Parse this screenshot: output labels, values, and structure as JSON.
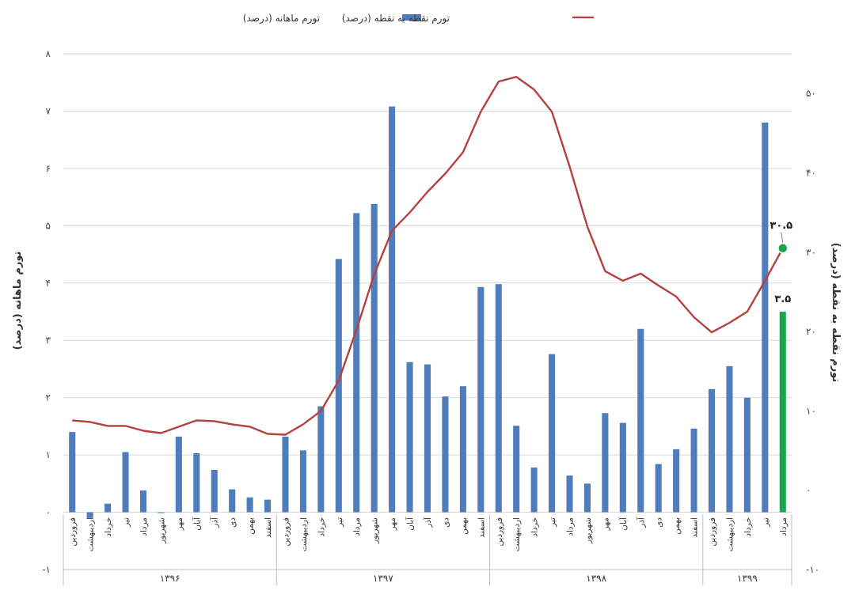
{
  "chart_data": {
    "type": "bar+line",
    "legend": {
      "position": "top",
      "bar_series_label": "تورم ماهانه (درصد)",
      "line_series_label": "تورم نقطه به نقطه (درصد)"
    },
    "y_left": {
      "label": "تورم ماهانه (درصد)",
      "ylim": [
        -1,
        8
      ],
      "ticks": [
        -1,
        0,
        1,
        2,
        3,
        4,
        5,
        6,
        7,
        8
      ],
      "tick_labels": [
        "-۱",
        "۰",
        "۱",
        "۲",
        "۳",
        "۴",
        "۵",
        "۶",
        "۷",
        "۸"
      ]
    },
    "y_right": {
      "label": "تورم نقطه به نقطه (درصد)",
      "ylim": [
        -10,
        55
      ],
      "ticks": [
        -10,
        0,
        10,
        20,
        30,
        40,
        50
      ],
      "tick_labels": [
        "-۱۰",
        "۰",
        "۱۰",
        "۲۰",
        "۳۰",
        "۴۰",
        "۵۰"
      ]
    },
    "grid": "horizontal",
    "categories": [
      "فروردین",
      "اردیبهشت",
      "خرداد",
      "تیر",
      "مرداد",
      "شهریور",
      "مهر",
      "آبان",
      "آذر",
      "دی",
      "بهمن",
      "اسفند",
      "فروردین",
      "اردیبهشت",
      "خرداد",
      "تیر",
      "مرداد",
      "شهریور",
      "مهر",
      "آبان",
      "آذر",
      "دی",
      "بهمن",
      "اسفند",
      "فروردین",
      "اردیبهشت",
      "خرداد",
      "تیر",
      "مرداد",
      "شهریور",
      "مهر",
      "آبان",
      "آذر",
      "دی",
      "بهمن",
      "اسفند",
      "فروردین",
      "اردیبهشت",
      "خرداد",
      "تیر",
      "مرداد"
    ],
    "year_groups": [
      {
        "label": "۱۳۹۶",
        "count": 12
      },
      {
        "label": "۱۳۹۷",
        "count": 12
      },
      {
        "label": "۱۳۹۸",
        "count": 12
      },
      {
        "label": "۱۳۹۹",
        "count": 5
      }
    ],
    "monthly_inflation": [
      1.4,
      -0.1,
      0.15,
      1.05,
      0.38,
      0.0,
      1.32,
      1.03,
      0.74,
      0.4,
      0.26,
      0.22,
      1.32,
      1.08,
      1.85,
      4.42,
      5.22,
      5.38,
      7.08,
      2.62,
      2.58,
      2.02,
      2.2,
      3.93,
      3.98,
      1.51,
      0.78,
      2.76,
      0.64,
      0.5,
      1.73,
      1.56,
      3.2,
      0.84,
      1.1,
      1.46,
      2.15,
      2.55,
      2.0,
      6.8,
      3.5
    ],
    "point_to_point_inflation": [
      8.8,
      8.6,
      8.1,
      8.1,
      7.5,
      7.2,
      8.0,
      8.8,
      8.7,
      8.3,
      8.0,
      7.1,
      7.0,
      8.3,
      10.0,
      13.8,
      20.2,
      27.2,
      32.7,
      35.0,
      37.6,
      39.9,
      42.6,
      47.7,
      51.5,
      52.1,
      50.5,
      47.7,
      40.8,
      33.2,
      27.6,
      26.4,
      27.3,
      25.8,
      24.4,
      21.8,
      19.9,
      21.1,
      22.5,
      26.4,
      30.5
    ],
    "highlight": {
      "index": 40,
      "bar_color": "#1aa64a",
      "point_color": "#1aa64a",
      "bar_value_label": "۳.۵",
      "point_value_label": "۳۰.۵"
    },
    "colors": {
      "bar": "#4f7dbb",
      "line": "#b5413e",
      "grid": "#d9d9d9"
    }
  }
}
